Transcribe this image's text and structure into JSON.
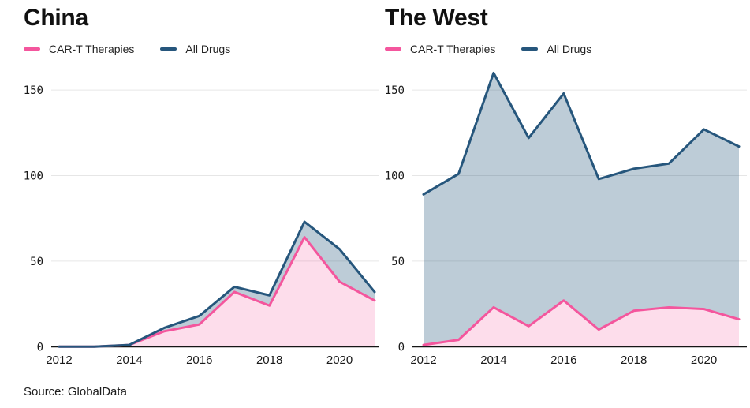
{
  "source_note": "Source: GlobalData",
  "colors": {
    "cart_line": "#f4569d",
    "cart_fill": "rgba(244,86,157,0.2)",
    "all_drugs_line": "#26567c",
    "all_drugs_fill": "rgba(38,86,124,0.3)",
    "gridline": "#e6e6e6",
    "axis": "#161616",
    "tick_text": "#191919"
  },
  "chart_data": [
    {
      "type": "area",
      "title": "China",
      "x": [
        2012,
        2013,
        2014,
        2015,
        2016,
        2017,
        2018,
        2019,
        2020,
        2021
      ],
      "series": [
        {
          "name": "CAR-T Therapies",
          "color": "#f4569d",
          "fill": "rgba(244,86,157,0.2)",
          "values": [
            0,
            0,
            1,
            9,
            13,
            32,
            24,
            64,
            38,
            27
          ]
        },
        {
          "name": "All Drugs",
          "color": "#26567c",
          "fill": "rgba(38,86,124,0.3)",
          "values": [
            0,
            0,
            1,
            11,
            18,
            35,
            30,
            73,
            57,
            32
          ]
        }
      ],
      "ylim": [
        0,
        165
      ],
      "yticks": [
        0,
        50,
        100,
        150
      ],
      "xticks": [
        2012,
        2014,
        2016,
        2018,
        2020
      ],
      "grid": "horizontal",
      "legend_position": "top-left"
    },
    {
      "type": "area",
      "title": "The West",
      "x": [
        2012,
        2013,
        2014,
        2015,
        2016,
        2017,
        2018,
        2019,
        2020,
        2021
      ],
      "series": [
        {
          "name": "CAR-T Therapies",
          "color": "#f4569d",
          "fill": "rgba(244,86,157,0.2)",
          "values": [
            1,
            4,
            23,
            12,
            27,
            10,
            21,
            23,
            22,
            16
          ]
        },
        {
          "name": "All Drugs",
          "color": "#26567c",
          "fill": "rgba(38,86,124,0.3)",
          "values": [
            89,
            101,
            160,
            122,
            148,
            98,
            104,
            107,
            127,
            117
          ]
        }
      ],
      "ylim": [
        0,
        165
      ],
      "yticks": [
        0,
        50,
        100,
        150
      ],
      "xticks": [
        2012,
        2014,
        2016,
        2018,
        2020
      ],
      "grid": "horizontal",
      "legend_position": "top-left"
    }
  ]
}
